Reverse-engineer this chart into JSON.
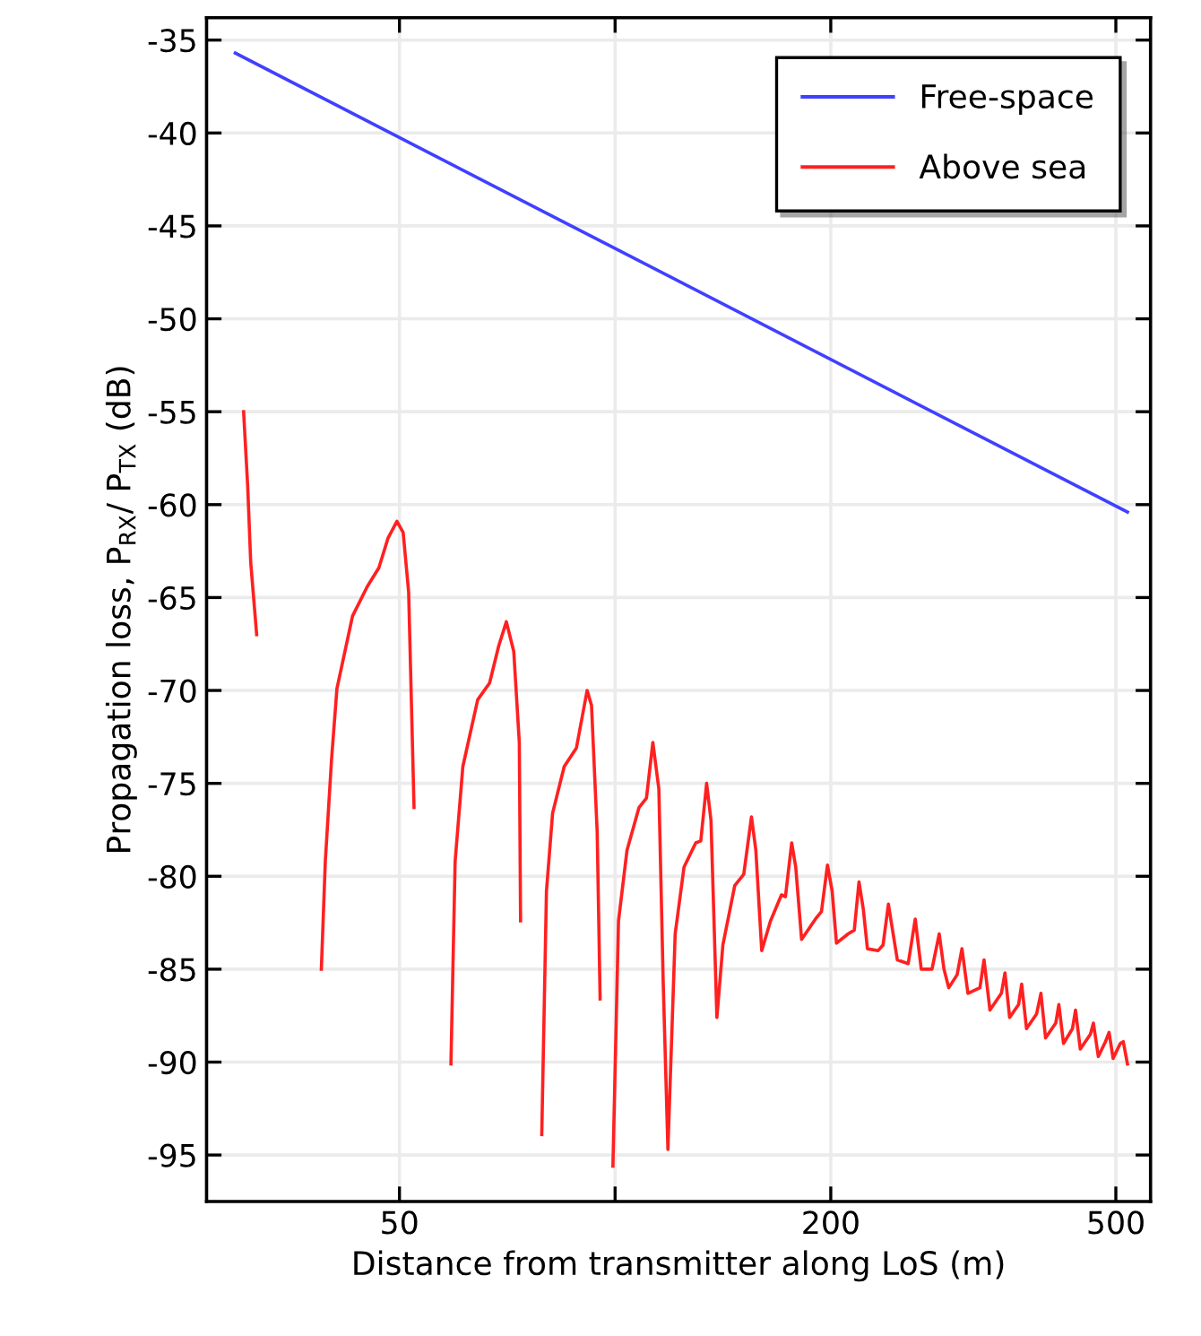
{
  "chart_data": {
    "type": "line",
    "xlabel": "Distance from transmitter along LoS (m)",
    "ylabel": "Propagation loss, P$_{RX}$/ P$_{TX}$ (dB)",
    "log": "x",
    "xlim": [
      26.9,
      559
    ],
    "xticks": [
      50,
      {
        "value": 100,
        "label": null
      },
      200,
      500
    ],
    "ylim": [
      -97.5,
      -33.8
    ],
    "yticks": [
      -95,
      -90,
      -85,
      -80,
      -75,
      -70,
      -65,
      -60,
      -55,
      -50,
      -45,
      -40,
      -35
    ],
    "grid": true,
    "legend": "top right",
    "line_style": "solid",
    "marker": "none",
    "series": [
      {
        "name": "Free-space",
        "color": "#4040ff",
        "x": [
          29.5,
          519.0
        ],
        "values": [
          -35.7,
          -60.4
        ]
      },
      {
        "name": "Above sea",
        "color": "#ff2020",
        "x": [
          30.3,
          30.7,
          31.0,
          31.6,
          35.0,
          38.9,
          39.4,
          40.2,
          40.9,
          43.0,
          45.1,
          46.8,
          48.2,
          49.6,
          50.6,
          51.5,
          52.4,
          56.0,
          59.0,
          59.8,
          61.3,
          64.3,
          66.8,
          68.8,
          70.5,
          72.2,
          73.5,
          73.8,
          76.5,
          79.0,
          80.2,
          81.8,
          84.9,
          88.3,
          91.4,
          92.7,
          94.4,
          95.3,
          97.5,
          99.3,
          101.1,
          103.9,
          108.0,
          110.6,
          112.9,
          115.1,
          116.7,
          118.5,
          121.3,
          124.8,
          129.6,
          131.7,
          134.2,
          136.1,
          138.7,
          141.4,
          146.9,
          151.2,
          155.0,
          157.2,
          160.2,
          164.8,
          170.7,
          172.9,
          176.4,
          178.7,
          182.1,
          190.4,
          194.1,
          197.9,
          200.9,
          203.7,
          211.5,
          215.7,
          219.0,
          222.1,
          225.0,
          232.9,
          236.6,
          240.7,
          244.4,
          247.7,
          256.5,
          262.4,
          267.5,
          276.9,
          283.4,
          287.8,
          292.2,
          300.2,
          304.9,
          310.8,
          323.0,
          327.3,
          333.6,
          346.1,
          350.1,
          355.4,
          365.8,
          369.4,
          375.2,
          387.6,
          393.0,
          398.9,
          412.2,
          416.3,
          422.6,
          434.9,
          439.2,
          446.0,
          460.7,
          465.2,
          472.6,
          483.6,
          489.2,
          495.6,
          507.2,
          512.1,
          519.0
        ],
        "values": [
          -55.0,
          -59.0,
          -63.1,
          -67.0,
          null,
          -85.0,
          -79.2,
          -73.7,
          -69.9,
          -66.0,
          -64.4,
          -63.4,
          -61.8,
          -60.9,
          -61.5,
          -64.7,
          -76.3,
          null,
          -90.1,
          -79.2,
          -74.1,
          -70.5,
          -69.6,
          -67.6,
          -66.3,
          -67.9,
          -72.8,
          -82.4,
          null,
          -93.9,
          -80.8,
          -76.6,
          -74.1,
          -73.1,
          -70.0,
          -70.8,
          -77.6,
          -86.6,
          null,
          -95.6,
          -82.4,
          -78.6,
          -76.3,
          -75.8,
          -72.8,
          -75.3,
          -85.6,
          -94.7,
          -83.1,
          -79.5,
          -78.2,
          -78.1,
          -75.0,
          -77.0,
          -87.6,
          -83.7,
          -80.5,
          -79.9,
          -76.8,
          -78.6,
          -84.0,
          -82.4,
          -81.0,
          -81.1,
          -78.2,
          -79.5,
          -83.4,
          -82.3,
          -81.9,
          -79.4,
          -80.8,
          -83.6,
          -83.1,
          -82.9,
          -80.3,
          -81.8,
          -83.9,
          -84.0,
          -83.7,
          -81.5,
          -83.1,
          -84.5,
          -84.7,
          -82.3,
          -85.0,
          -85.0,
          -83.1,
          -85.0,
          -86.0,
          -85.3,
          -83.9,
          -86.3,
          -86.0,
          -84.5,
          -87.2,
          -86.3,
          -85.2,
          -87.6,
          -86.9,
          -85.8,
          -88.2,
          -87.4,
          -86.3,
          -88.7,
          -87.9,
          -86.9,
          -89.0,
          -88.2,
          -87.2,
          -89.3,
          -88.5,
          -87.9,
          -89.7,
          -88.9,
          -88.4,
          -89.8,
          -89.0,
          -88.9,
          -90.1
        ]
      }
    ]
  }
}
